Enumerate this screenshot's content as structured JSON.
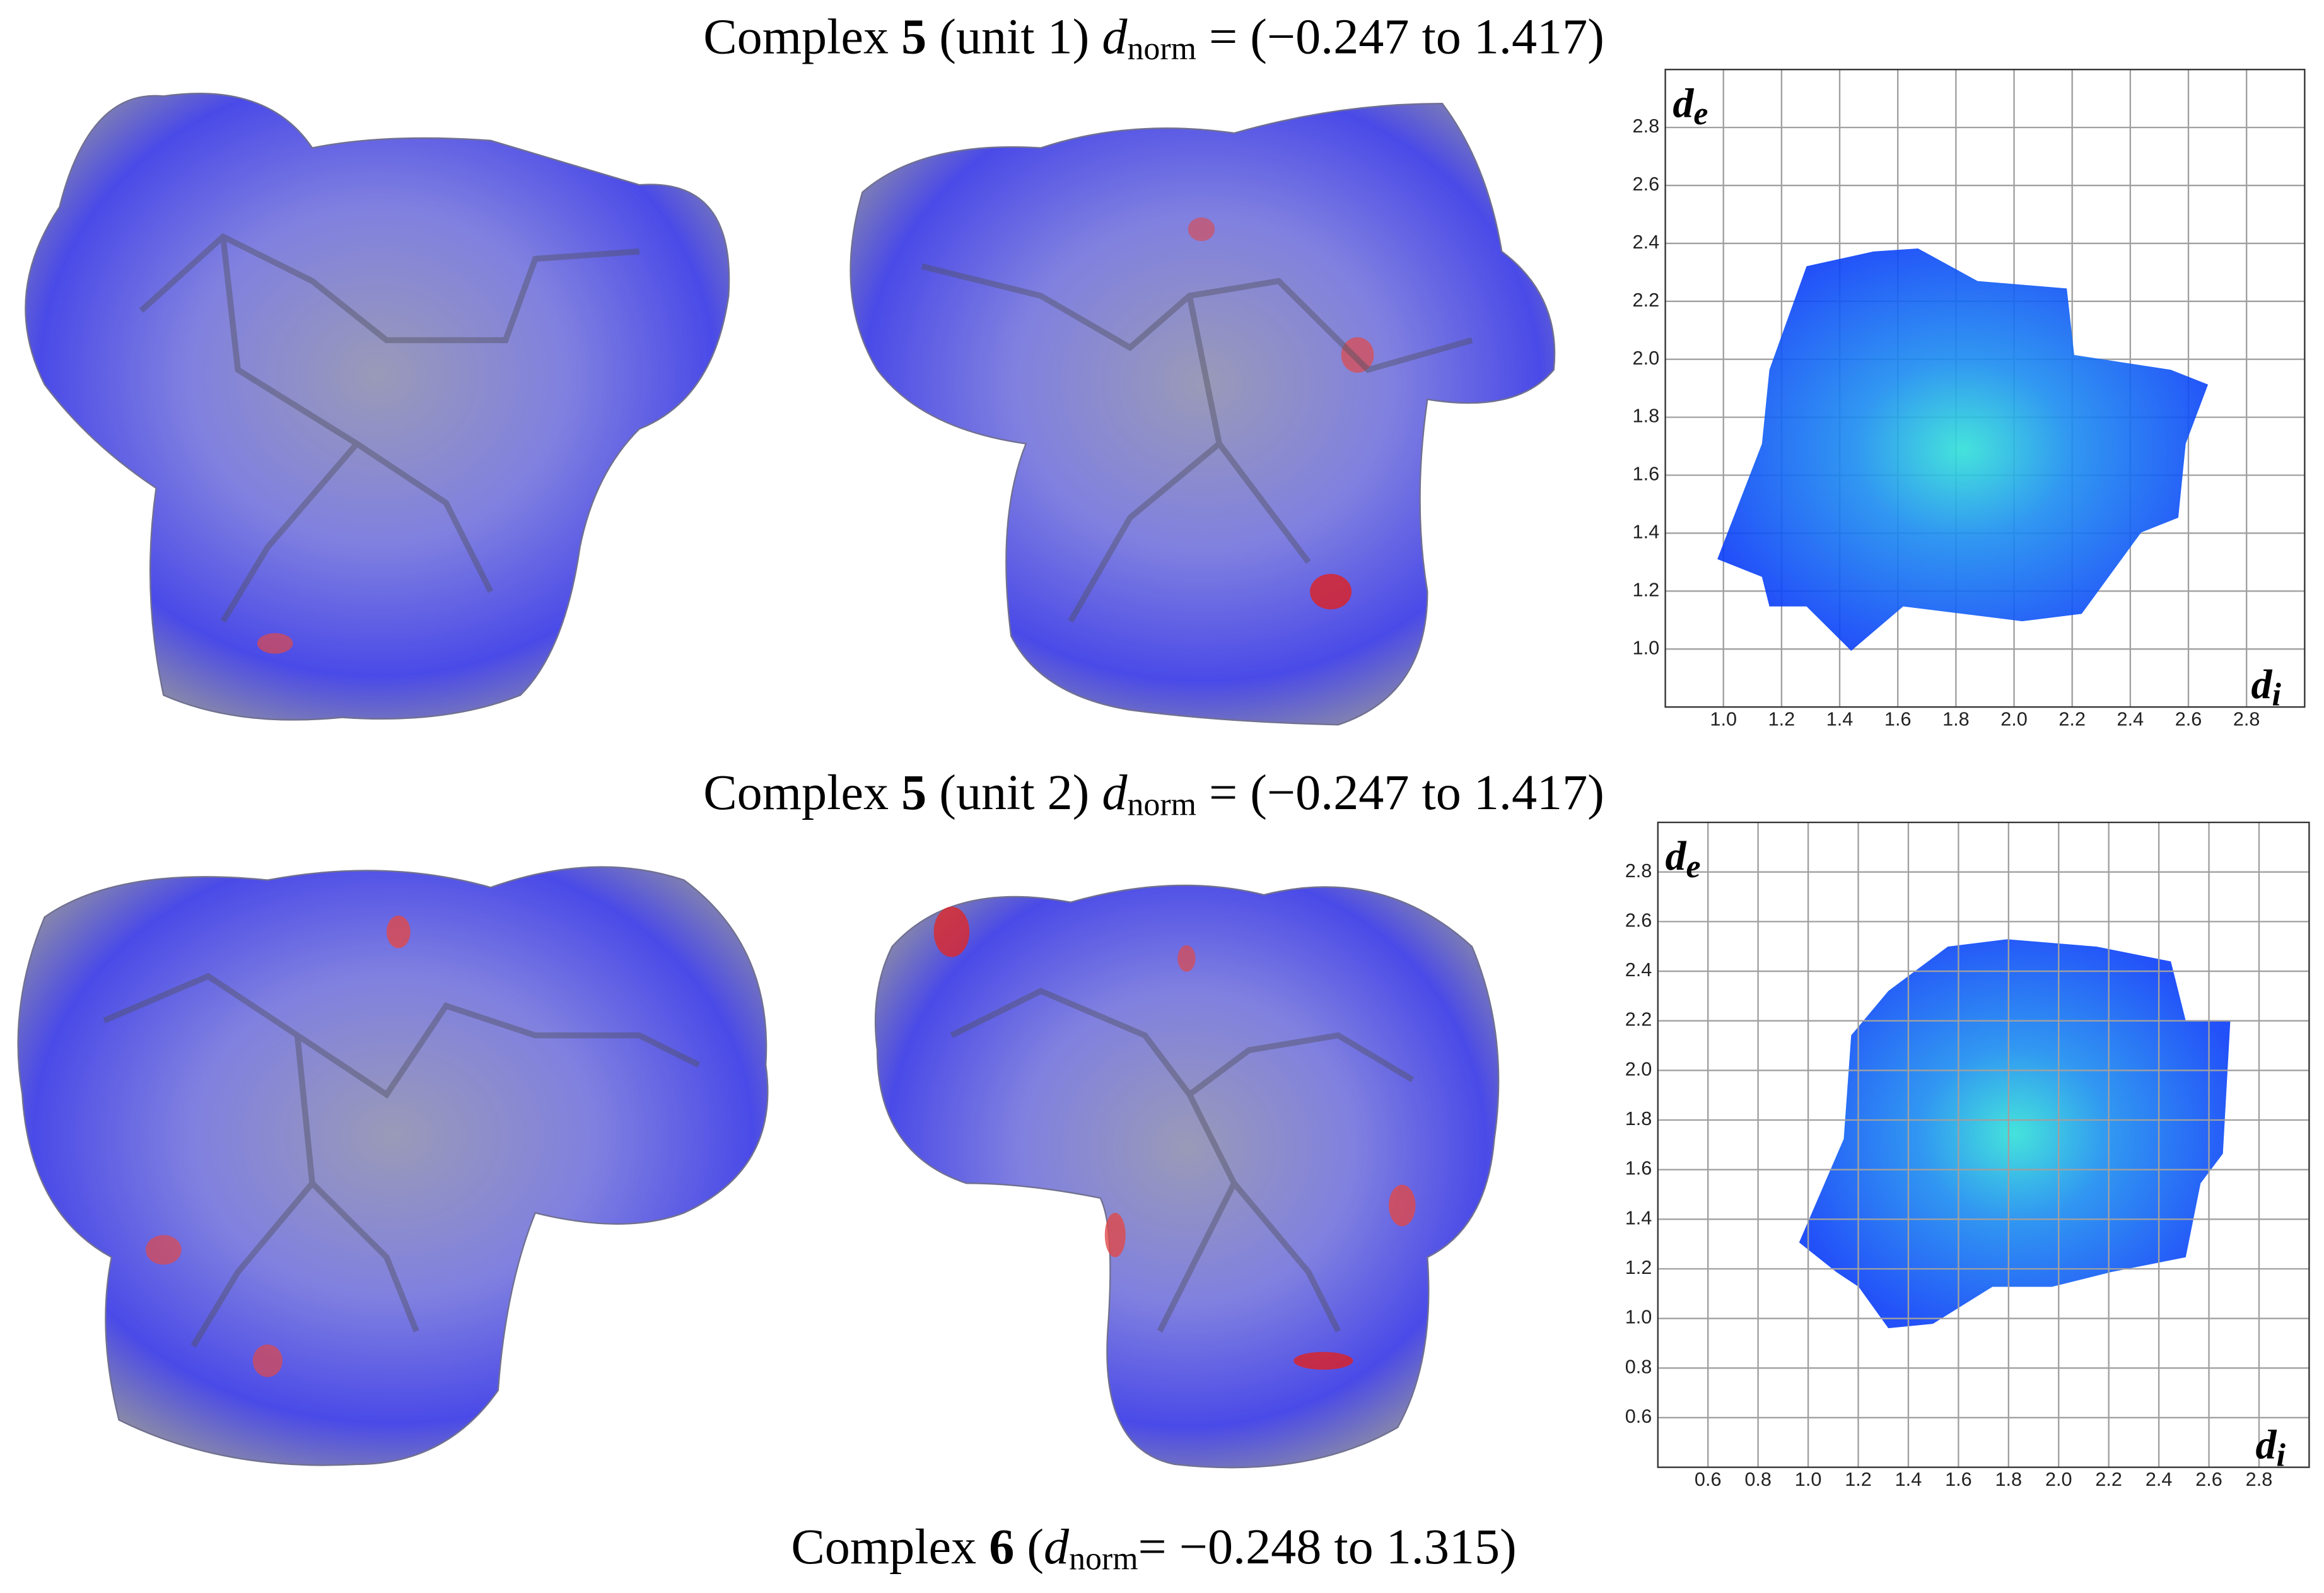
{
  "captions": [
    {
      "prefix": "Complex ",
      "number": "5",
      "unit": " (unit 1) ",
      "symbol": "d",
      "subscript": "norm",
      "range": " = (−0.247 to 1.417)"
    },
    {
      "prefix": "Complex ",
      "number": "5",
      "unit": " (unit 2) ",
      "symbol": "d",
      "subscript": "norm",
      "range": " = (−0.247 to 1.417)"
    },
    {
      "prefix": "Complex ",
      "number": "6",
      "unit": " (",
      "symbol": "d",
      "subscript": "norm",
      "range": "= −0.248 to 1.315)"
    }
  ],
  "chart_data": [
    {
      "type": "fingerprint",
      "x_label": {
        "symbol": "d",
        "subscript": "i"
      },
      "y_label": {
        "symbol": "d",
        "subscript": "e"
      },
      "xlim": [
        0.8,
        3.0
      ],
      "ylim": [
        0.8,
        3.0
      ],
      "grid": true,
      "xticks": [
        {
          "value": 1.0,
          "label": "1.0"
        },
        1.2,
        1.4,
        1.6,
        1.8,
        {
          "value": 2.0,
          "label": "2.0"
        },
        2.2,
        2.4,
        2.6,
        2.8
      ],
      "yticks": [
        {
          "value": 1.0,
          "label": "1.0"
        },
        1.2,
        1.4,
        1.6,
        1.8,
        {
          "value": 2.0,
          "label": "2.0"
        },
        2.2,
        2.4,
        2.6,
        2.8
      ]
    },
    {
      "type": "fingerprint",
      "x_label": {
        "symbol": "d",
        "subscript": "i"
      },
      "y_label": {
        "symbol": "d",
        "subscript": "e"
      },
      "xlim": [
        0.4,
        3.0
      ],
      "ylim": [
        0.4,
        3.0
      ],
      "grid": true,
      "xticks": [
        0.6,
        0.8,
        {
          "value": 1.0,
          "label": "1.0"
        },
        1.2,
        1.4,
        1.6,
        1.8,
        {
          "value": 2.0,
          "label": "2.0"
        },
        2.2,
        2.4,
        2.6,
        2.8
      ],
      "yticks": [
        0.6,
        0.8,
        {
          "value": 1.0,
          "label": "1.0"
        },
        1.2,
        1.4,
        1.6,
        1.8,
        {
          "value": 2.0,
          "label": "2.0"
        },
        2.2,
        2.4,
        2.6,
        2.8
      ]
    }
  ]
}
